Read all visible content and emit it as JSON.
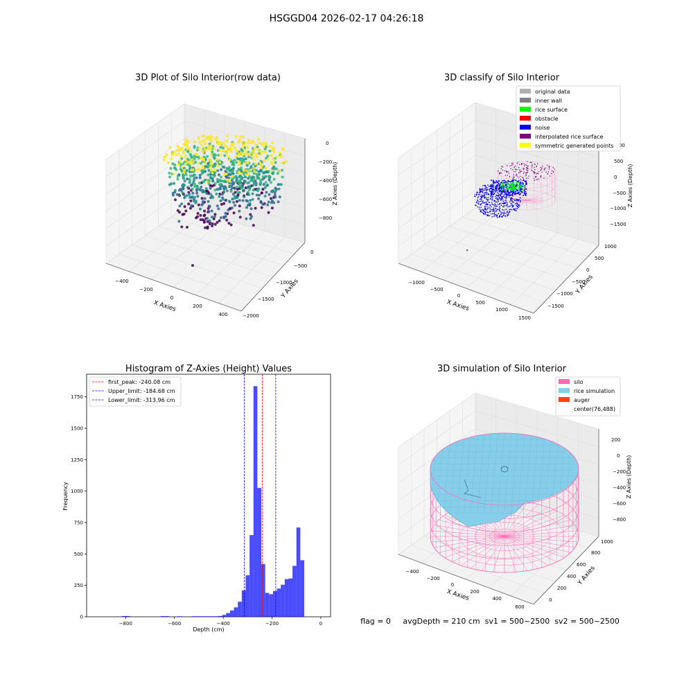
{
  "figure": {
    "suptitle": "HSGGD04 2026-02-17 04:26:18",
    "status_line": "flag = 0     avgDepth = 210 cm  sv1 = 500~2500  sv2 = 500~2500"
  },
  "chart_data": [
    {
      "type": "scatter",
      "title": "3D Plot of Silo Interior(row data)",
      "xlabel": "X Axies",
      "ylabel": "Y Axies",
      "zlabel": "Z Axies (Depth)",
      "x_ticks": [
        "−400",
        "−200",
        "0",
        "200",
        "400"
      ],
      "y_ticks": [
        "0",
        "−500",
        "−1000",
        "−1500",
        "−2000"
      ],
      "z_ticks": [
        "0",
        "−200",
        "−400",
        "−600",
        "−800"
      ],
      "colormap": [
        "#440154",
        "#31688e",
        "#21918c",
        "#35b779",
        "#fde725"
      ]
    },
    {
      "type": "scatter",
      "title": "3D classify of Silo Interior",
      "xlabel": "X Axies",
      "ylabel": "Y Axies",
      "zlabel": "Z Axies (Depth)",
      "x_ticks": [
        "−1000",
        "−500",
        "0",
        "500",
        "1000",
        "1500"
      ],
      "y_ticks": [
        "1000",
        "500",
        "0",
        "−500",
        "−1000",
        "−1500"
      ],
      "z_ticks": [
        "1000",
        "500",
        "0",
        "−500",
        "−1000",
        "−1500"
      ],
      "legend_position": "top-right",
      "legend": [
        {
          "label": "original data",
          "color": "#b0b0b0"
        },
        {
          "label": "inner wall",
          "color": "#808080"
        },
        {
          "label": "rice surface",
          "color": "#00ff00"
        },
        {
          "label": "obstacle",
          "color": "#ff0000"
        },
        {
          "label": "noise",
          "color": "#0000ff"
        },
        {
          "label": "interpolated rice surface",
          "color": "#800080"
        },
        {
          "label": "symmetric generated points",
          "color": "#ffff00"
        }
      ]
    },
    {
      "type": "bar",
      "title": "Histogram of Z-Axies (Height) Values",
      "xlabel": "Depth (cm)",
      "ylabel": "Frequency",
      "xlim": [
        -960,
        40
      ],
      "ylim": [
        0,
        1930
      ],
      "x_ticks": [
        -800,
        -600,
        -400,
        -200,
        0
      ],
      "x_tick_labels": [
        "−800",
        "−600",
        "−400",
        "−200",
        "0"
      ],
      "y_ticks": [
        0,
        250,
        500,
        750,
        1000,
        1250,
        1500,
        1750
      ],
      "bar_color": "#0000ff",
      "bins": [
        {
          "x0": -816,
          "x1": -781,
          "count": 6
        },
        {
          "x0": -656,
          "x1": -622,
          "count": 5
        },
        {
          "x0": -586,
          "x1": -568,
          "count": 4
        },
        {
          "x0": -530,
          "x1": -420,
          "count": 4
        },
        {
          "x0": -420,
          "x1": -404,
          "count": 6
        },
        {
          "x0": -404,
          "x1": -388,
          "count": 15
        },
        {
          "x0": -388,
          "x1": -372,
          "count": 30
        },
        {
          "x0": -372,
          "x1": -356,
          "count": 50
        },
        {
          "x0": -356,
          "x1": -340,
          "count": 75
        },
        {
          "x0": -340,
          "x1": -324,
          "count": 120
        },
        {
          "x0": -324,
          "x1": -308,
          "count": 210
        },
        {
          "x0": -308,
          "x1": -292,
          "count": 330
        },
        {
          "x0": -292,
          "x1": -276,
          "count": 650
        },
        {
          "x0": -276,
          "x1": -260,
          "count": 1835
        },
        {
          "x0": -260,
          "x1": -244,
          "count": 1025
        },
        {
          "x0": -244,
          "x1": -228,
          "count": 420
        },
        {
          "x0": -228,
          "x1": -212,
          "count": 190
        },
        {
          "x0": -212,
          "x1": -196,
          "count": 180
        },
        {
          "x0": -196,
          "x1": -180,
          "count": 205
        },
        {
          "x0": -180,
          "x1": -164,
          "count": 225
        },
        {
          "x0": -164,
          "x1": -148,
          "count": 255
        },
        {
          "x0": -148,
          "x1": -132,
          "count": 300
        },
        {
          "x0": -132,
          "x1": -116,
          "count": 305
        },
        {
          "x0": -116,
          "x1": -100,
          "count": 405
        },
        {
          "x0": -100,
          "x1": -84,
          "count": 710
        },
        {
          "x0": -84,
          "x1": -68,
          "count": 450
        }
      ],
      "vlines": [
        {
          "label": "first_peak: -240.08 cm",
          "x": -240.08,
          "color": "#ff0000"
        },
        {
          "label": "Upper_limit: -184.68 cm",
          "x": -184.68,
          "color": "#0000ff"
        },
        {
          "label": "Lower_limit: -313.96 cm",
          "x": -313.96,
          "color": "#0000ff"
        }
      ],
      "legend_position": "top-left"
    },
    {
      "type": "area",
      "title": "3D simulation of Silo Interior",
      "xlabel": "X Axies",
      "ylabel": "Y Axies",
      "zlabel": "Z Axies (Depth)",
      "x_ticks": [
        "−400",
        "−200",
        "0",
        "200",
        "400",
        "600"
      ],
      "y_ticks": [
        "0",
        "200",
        "400",
        "600",
        "800",
        "1000"
      ],
      "z_ticks": [
        "200",
        "0",
        "−200",
        "−400",
        "−600",
        "−800"
      ],
      "legend_position": "top-right",
      "legend": [
        {
          "label": "silo",
          "color": "#ff69b4"
        },
        {
          "label": "rice simulation",
          "color": "#87ceeb"
        },
        {
          "label": "auger",
          "color": "#ff4500"
        },
        {
          "label": "center(76,488)",
          "color": ""
        }
      ]
    }
  ]
}
